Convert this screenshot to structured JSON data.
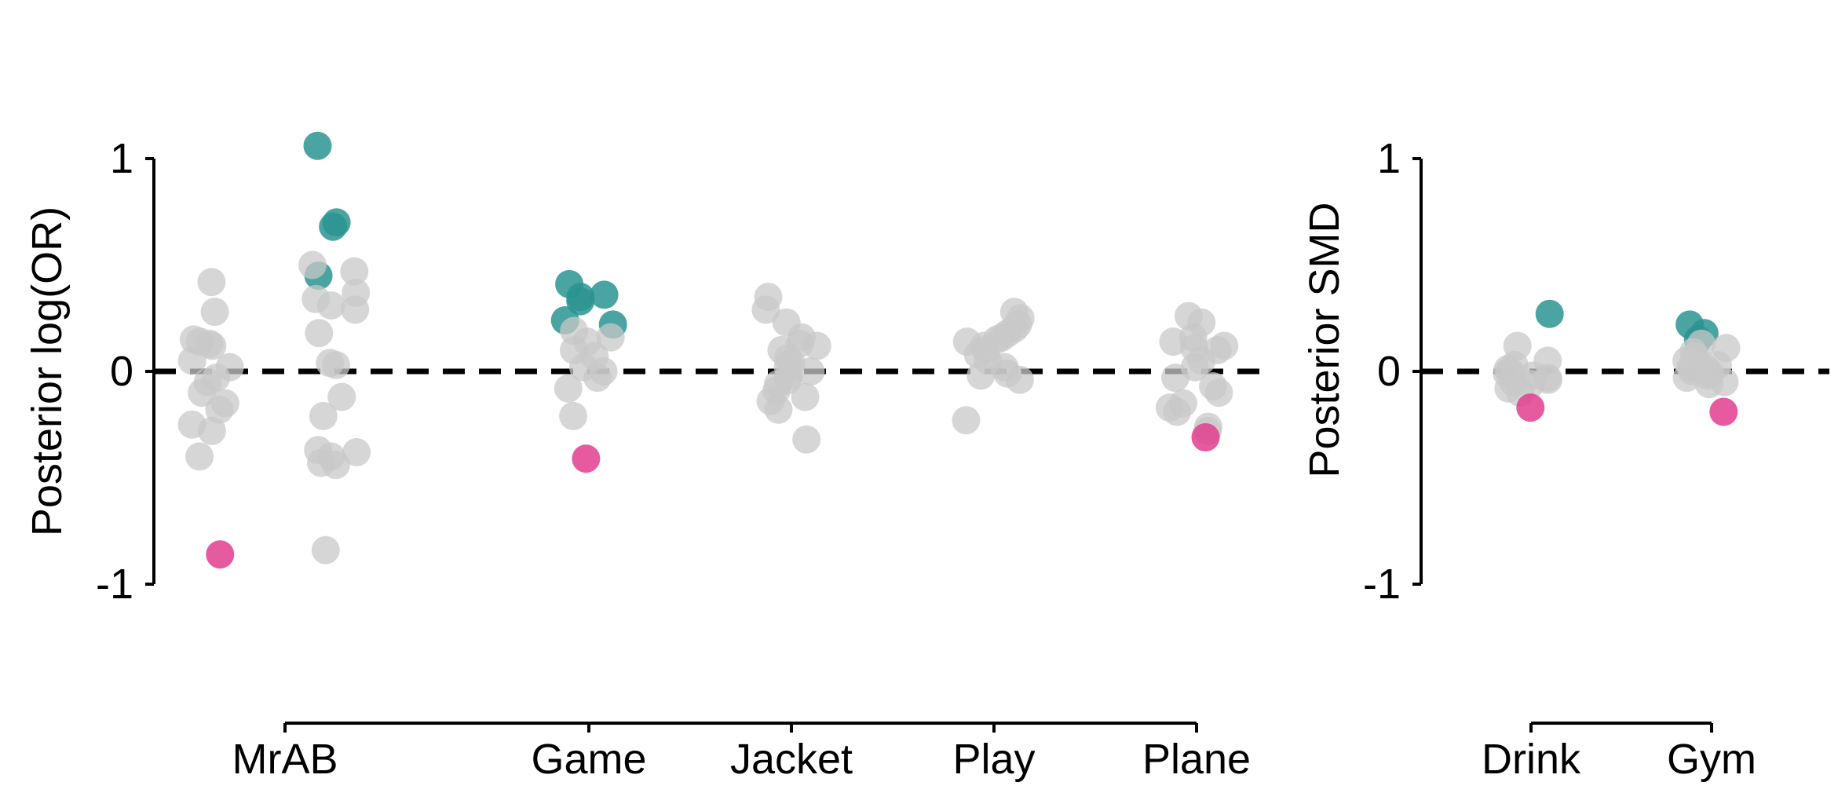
{
  "colors": {
    "positive": "#2a9490",
    "negative": "#e23d8e",
    "neutral": "#c8c8c8",
    "axis": "#000000"
  },
  "chart_data": [
    {
      "type": "scatter",
      "ylabel": "Posterior log(OR)",
      "xlabel": "",
      "ylim": [
        -1,
        1
      ],
      "yticks": [
        "1",
        "0",
        "-1"
      ],
      "reference_line": {
        "y": 0,
        "style": "dashed"
      },
      "grid": false,
      "categories": [
        "MrAB",
        "Game",
        "Jacket",
        "Play",
        "Plane"
      ],
      "points": {
        "MrAB": [
          {
            "v": 0.42,
            "c": "neutral"
          },
          {
            "v": 0.28,
            "c": "neutral"
          },
          {
            "v": 0.15,
            "c": "neutral"
          },
          {
            "v": 0.14,
            "c": "neutral"
          },
          {
            "v": 0.13,
            "c": "neutral"
          },
          {
            "v": 0.12,
            "c": "neutral"
          },
          {
            "v": 0.05,
            "c": "neutral"
          },
          {
            "v": 0.02,
            "c": "neutral"
          },
          {
            "v": -0.03,
            "c": "neutral"
          },
          {
            "v": -0.05,
            "c": "neutral"
          },
          {
            "v": -0.1,
            "c": "neutral"
          },
          {
            "v": -0.15,
            "c": "neutral"
          },
          {
            "v": -0.18,
            "c": "neutral"
          },
          {
            "v": -0.25,
            "c": "neutral"
          },
          {
            "v": -0.28,
            "c": "neutral"
          },
          {
            "v": -0.4,
            "c": "neutral"
          },
          {
            "v": -0.86,
            "c": "negative"
          },
          {
            "v": 1.06,
            "c": "positive"
          },
          {
            "v": 0.7,
            "c": "positive"
          },
          {
            "v": 0.68,
            "c": "positive"
          },
          {
            "v": 0.45,
            "c": "positive"
          },
          {
            "v": 0.5,
            "c": "neutral"
          },
          {
            "v": 0.47,
            "c": "neutral"
          },
          {
            "v": 0.37,
            "c": "neutral"
          },
          {
            "v": 0.34,
            "c": "neutral"
          },
          {
            "v": 0.31,
            "c": "neutral"
          },
          {
            "v": 0.29,
            "c": "neutral"
          },
          {
            "v": 0.18,
            "c": "neutral"
          },
          {
            "v": 0.04,
            "c": "neutral"
          },
          {
            "v": 0.03,
            "c": "neutral"
          },
          {
            "v": -0.12,
            "c": "neutral"
          },
          {
            "v": -0.21,
            "c": "neutral"
          },
          {
            "v": -0.37,
            "c": "neutral"
          },
          {
            "v": -0.38,
            "c": "neutral"
          },
          {
            "v": -0.4,
            "c": "neutral"
          },
          {
            "v": -0.43,
            "c": "neutral"
          },
          {
            "v": -0.44,
            "c": "neutral"
          },
          {
            "v": -0.84,
            "c": "neutral"
          }
        ],
        "Game": [
          {
            "v": 0.41,
            "c": "positive"
          },
          {
            "v": 0.36,
            "c": "positive"
          },
          {
            "v": 0.35,
            "c": "positive"
          },
          {
            "v": 0.33,
            "c": "positive"
          },
          {
            "v": 0.24,
            "c": "positive"
          },
          {
            "v": 0.22,
            "c": "positive"
          },
          {
            "v": 0.19,
            "c": "neutral"
          },
          {
            "v": 0.16,
            "c": "neutral"
          },
          {
            "v": 0.14,
            "c": "neutral"
          },
          {
            "v": 0.1,
            "c": "neutral"
          },
          {
            "v": 0.07,
            "c": "neutral"
          },
          {
            "v": 0.02,
            "c": "neutral"
          },
          {
            "v": 0.0,
            "c": "neutral"
          },
          {
            "v": -0.03,
            "c": "neutral"
          },
          {
            "v": -0.08,
            "c": "neutral"
          },
          {
            "v": -0.21,
            "c": "neutral"
          },
          {
            "v": -0.41,
            "c": "negative"
          }
        ],
        "Jacket": [
          {
            "v": 0.35,
            "c": "neutral"
          },
          {
            "v": 0.29,
            "c": "neutral"
          },
          {
            "v": 0.23,
            "c": "neutral"
          },
          {
            "v": 0.16,
            "c": "neutral"
          },
          {
            "v": 0.13,
            "c": "neutral"
          },
          {
            "v": 0.12,
            "c": "neutral"
          },
          {
            "v": 0.1,
            "c": "neutral"
          },
          {
            "v": 0.06,
            "c": "neutral"
          },
          {
            "v": 0.04,
            "c": "neutral"
          },
          {
            "v": 0.02,
            "c": "neutral"
          },
          {
            "v": 0.0,
            "c": "neutral"
          },
          {
            "v": -0.02,
            "c": "neutral"
          },
          {
            "v": -0.04,
            "c": "neutral"
          },
          {
            "v": -0.06,
            "c": "neutral"
          },
          {
            "v": -0.09,
            "c": "neutral"
          },
          {
            "v": -0.12,
            "c": "neutral"
          },
          {
            "v": -0.14,
            "c": "neutral"
          },
          {
            "v": -0.18,
            "c": "neutral"
          },
          {
            "v": -0.32,
            "c": "neutral"
          }
        ],
        "Play": [
          {
            "v": 0.28,
            "c": "neutral"
          },
          {
            "v": 0.25,
            "c": "neutral"
          },
          {
            "v": 0.22,
            "c": "neutral"
          },
          {
            "v": 0.2,
            "c": "neutral"
          },
          {
            "v": 0.18,
            "c": "neutral"
          },
          {
            "v": 0.16,
            "c": "neutral"
          },
          {
            "v": 0.15,
            "c": "neutral"
          },
          {
            "v": 0.14,
            "c": "neutral"
          },
          {
            "v": 0.12,
            "c": "neutral"
          },
          {
            "v": 0.1,
            "c": "neutral"
          },
          {
            "v": 0.08,
            "c": "neutral"
          },
          {
            "v": 0.05,
            "c": "neutral"
          },
          {
            "v": 0.02,
            "c": "neutral"
          },
          {
            "v": -0.01,
            "c": "neutral"
          },
          {
            "v": -0.02,
            "c": "neutral"
          },
          {
            "v": -0.04,
            "c": "neutral"
          },
          {
            "v": -0.23,
            "c": "neutral"
          }
        ],
        "Plane": [
          {
            "v": 0.26,
            "c": "neutral"
          },
          {
            "v": 0.23,
            "c": "neutral"
          },
          {
            "v": 0.16,
            "c": "neutral"
          },
          {
            "v": 0.14,
            "c": "neutral"
          },
          {
            "v": 0.12,
            "c": "neutral"
          },
          {
            "v": 0.11,
            "c": "neutral"
          },
          {
            "v": 0.1,
            "c": "neutral"
          },
          {
            "v": 0.05,
            "c": "neutral"
          },
          {
            "v": 0.02,
            "c": "neutral"
          },
          {
            "v": -0.03,
            "c": "neutral"
          },
          {
            "v": -0.07,
            "c": "neutral"
          },
          {
            "v": -0.1,
            "c": "neutral"
          },
          {
            "v": -0.15,
            "c": "neutral"
          },
          {
            "v": -0.17,
            "c": "neutral"
          },
          {
            "v": -0.19,
            "c": "neutral"
          },
          {
            "v": -0.26,
            "c": "neutral"
          },
          {
            "v": -0.28,
            "c": "neutral"
          },
          {
            "v": -0.31,
            "c": "negative"
          }
        ]
      }
    },
    {
      "type": "scatter",
      "ylabel": "Posterior SMD",
      "xlabel": "",
      "ylim": [
        -1,
        1
      ],
      "yticks": [
        "1",
        "0",
        "-1"
      ],
      "reference_line": {
        "y": 0,
        "style": "dashed"
      },
      "grid": false,
      "categories": [
        "Drink",
        "Gym"
      ],
      "points": {
        "Drink": [
          {
            "v": 0.27,
            "c": "positive"
          },
          {
            "v": 0.12,
            "c": "neutral"
          },
          {
            "v": 0.05,
            "c": "neutral"
          },
          {
            "v": 0.03,
            "c": "neutral"
          },
          {
            "v": 0.01,
            "c": "neutral"
          },
          {
            "v": 0.0,
            "c": "neutral"
          },
          {
            "v": -0.01,
            "c": "neutral"
          },
          {
            "v": -0.02,
            "c": "neutral"
          },
          {
            "v": -0.03,
            "c": "neutral"
          },
          {
            "v": -0.04,
            "c": "neutral"
          },
          {
            "v": -0.05,
            "c": "neutral"
          },
          {
            "v": -0.06,
            "c": "neutral"
          },
          {
            "v": -0.08,
            "c": "neutral"
          },
          {
            "v": -0.1,
            "c": "neutral"
          },
          {
            "v": -0.17,
            "c": "negative"
          }
        ],
        "Gym": [
          {
            "v": 0.22,
            "c": "positive"
          },
          {
            "v": 0.18,
            "c": "positive"
          },
          {
            "v": 0.15,
            "c": "positive"
          },
          {
            "v": 0.13,
            "c": "neutral"
          },
          {
            "v": 0.11,
            "c": "neutral"
          },
          {
            "v": 0.09,
            "c": "neutral"
          },
          {
            "v": 0.07,
            "c": "neutral"
          },
          {
            "v": 0.05,
            "c": "neutral"
          },
          {
            "v": 0.03,
            "c": "neutral"
          },
          {
            "v": 0.02,
            "c": "neutral"
          },
          {
            "v": 0.01,
            "c": "neutral"
          },
          {
            "v": 0.0,
            "c": "neutral"
          },
          {
            "v": -0.01,
            "c": "neutral"
          },
          {
            "v": -0.02,
            "c": "neutral"
          },
          {
            "v": -0.03,
            "c": "neutral"
          },
          {
            "v": -0.05,
            "c": "neutral"
          },
          {
            "v": -0.06,
            "c": "neutral"
          },
          {
            "v": -0.19,
            "c": "negative"
          }
        ]
      }
    }
  ]
}
